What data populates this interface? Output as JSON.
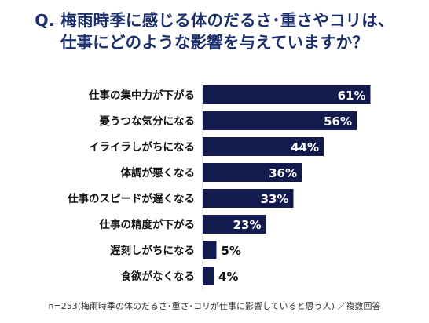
{
  "title_line1": "Q. 梅雨時季に感じる体のだるさ･重さやコリは、",
  "title_line2": "仕事にどのような影響を与えていますか？",
  "footnote": "n=253(梅雨時季の体のだるさ･重さ･コリが仕事に影響していると思う人) ／複数回答",
  "colors": {
    "title": "#1c2f6b",
    "bar": "#131a4e",
    "label": "#111111"
  },
  "chart_data": {
    "type": "bar",
    "orientation": "horizontal",
    "title": "Q. 梅雨時季に感じる体のだるさ･重さやコリは、仕事にどのような影響を与えていますか？",
    "categories": [
      "仕事の集中力が下がる",
      "憂うつな気分になる",
      "イライラしがちになる",
      "体調が悪くなる",
      "仕事のスピードが遅くなる",
      "仕事の精度が下がる",
      "遅刻しがちになる",
      "食欲がなくなる"
    ],
    "values": [
      61,
      56,
      44,
      36,
      33,
      23,
      5,
      4
    ],
    "value_labels": [
      "61%",
      "56%",
      "44%",
      "36%",
      "33%",
      "23%",
      "5%",
      "4%"
    ],
    "unit": "%",
    "xlim": [
      0,
      100
    ],
    "grid": false,
    "legend": "none"
  }
}
